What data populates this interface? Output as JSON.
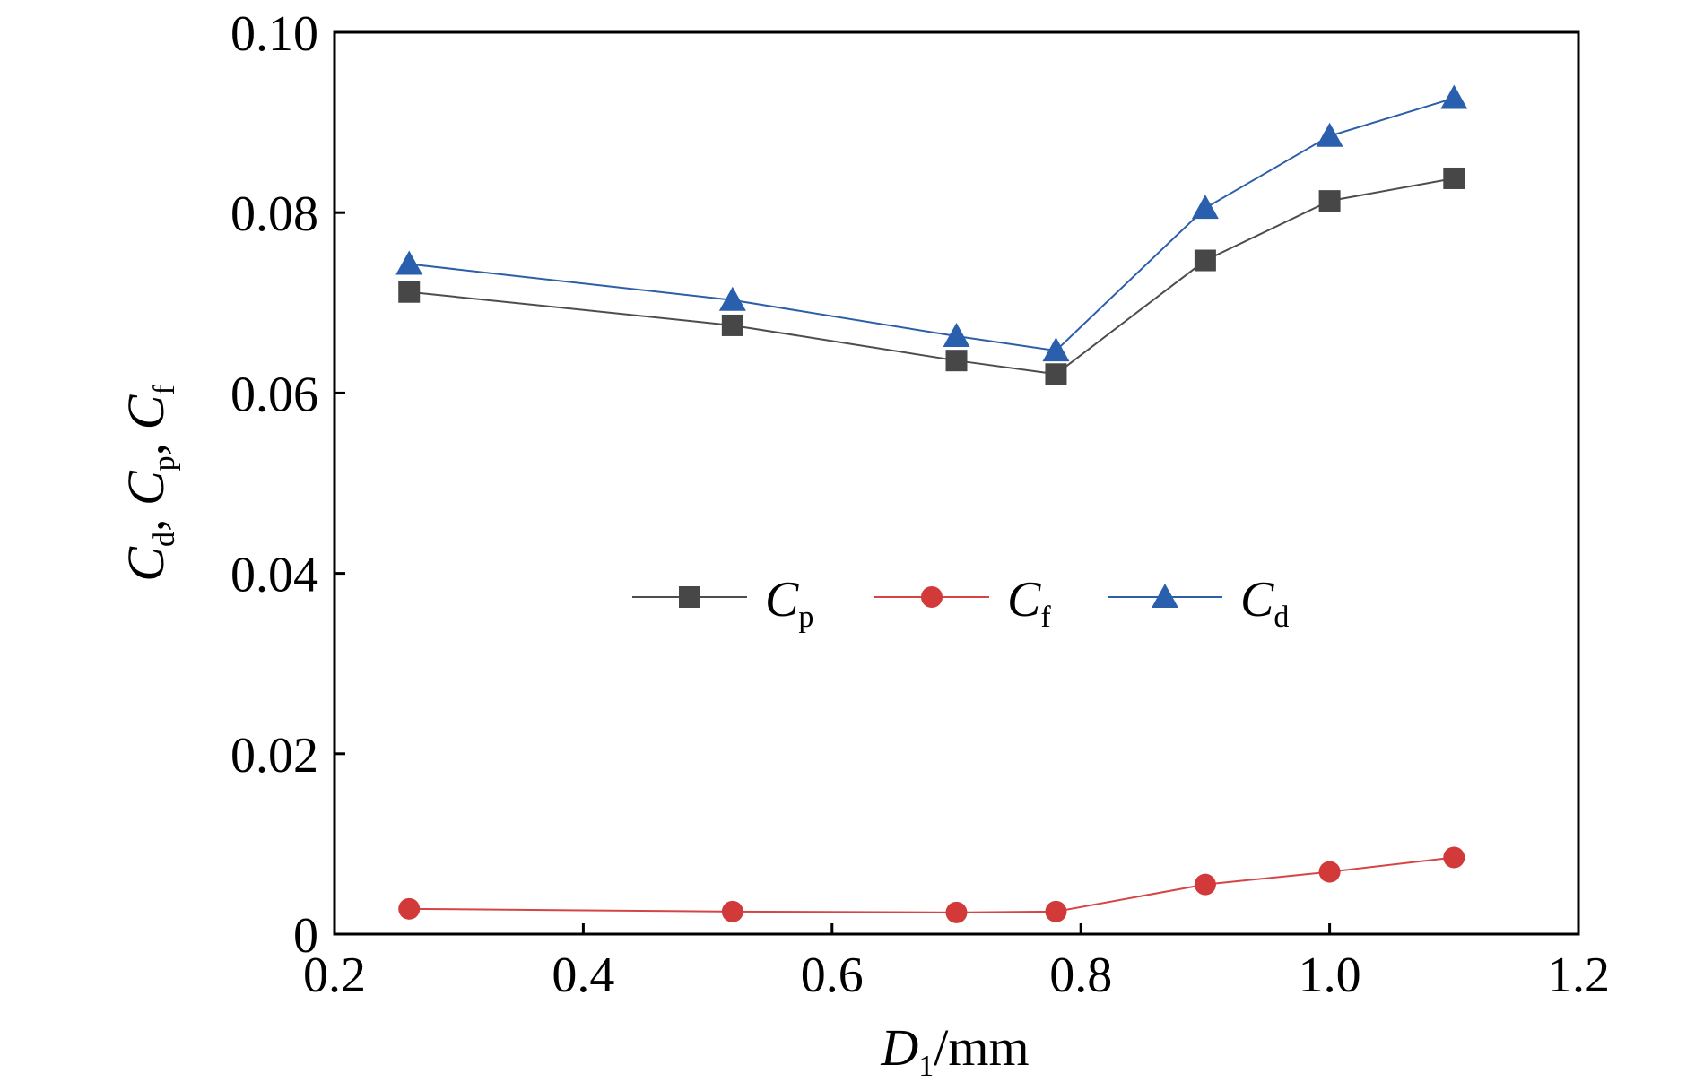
{
  "chart_data": {
    "type": "line",
    "title": "",
    "xlabel": {
      "main": "D",
      "sub": "1",
      "unit": "/mm"
    },
    "ylabel": {
      "parts": [
        {
          "main": "C",
          "sub": "d",
          "sep": ", "
        },
        {
          "main": "C",
          "sub": "p",
          "sep": ", "
        },
        {
          "main": "C",
          "sub": "f",
          "sep": ""
        }
      ]
    },
    "xlim": [
      0.2,
      1.2
    ],
    "ylim": [
      0,
      0.1
    ],
    "xticks": [
      0.2,
      0.4,
      0.6,
      0.8,
      1.0,
      1.2
    ],
    "xtick_labels": [
      "0.2",
      "0.4",
      "0.6",
      "0.8",
      "1.0",
      "1.2"
    ],
    "yticks": [
      0,
      0.02,
      0.04,
      0.06,
      0.08,
      0.1
    ],
    "ytick_labels": [
      "0",
      "0.02",
      "0.04",
      "0.06",
      "0.08",
      "0.10"
    ],
    "grid": false,
    "legend_position": "center",
    "x": [
      0.26,
      0.52,
      0.7,
      0.78,
      0.9,
      1.0,
      1.1
    ],
    "series": [
      {
        "name": "C",
        "name_sub": "p",
        "marker": "square",
        "line_color": "#4d4d4d",
        "marker_color": "#474747",
        "values": [
          0.0712,
          0.0675,
          0.0636,
          0.0621,
          0.0747,
          0.0813,
          0.0838
        ]
      },
      {
        "name": "C",
        "name_sub": "f",
        "marker": "circle",
        "line_color": "#d64545",
        "marker_color": "#d23a3a",
        "values": [
          0.0028,
          0.0025,
          0.0024,
          0.0025,
          0.0055,
          0.0069,
          0.0085
        ]
      },
      {
        "name": "C",
        "name_sub": "d",
        "marker": "triangle",
        "line_color": "#2c5fa8",
        "marker_color": "#2a5fae",
        "values": [
          0.0743,
          0.0703,
          0.0663,
          0.0647,
          0.0805,
          0.0885,
          0.0927
        ]
      }
    ]
  }
}
